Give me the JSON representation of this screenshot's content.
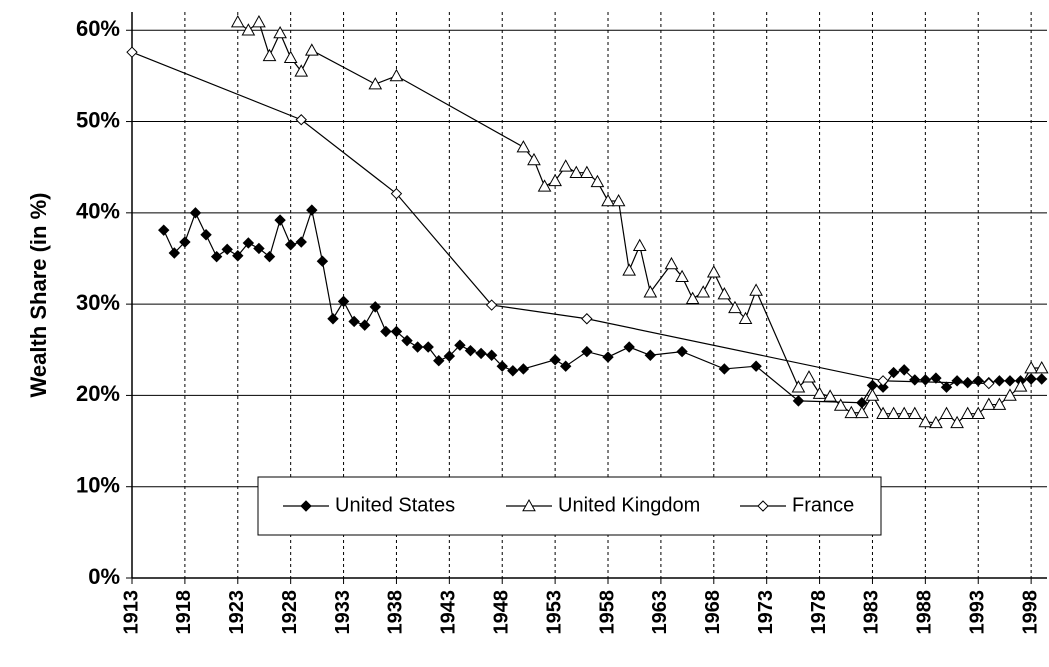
{
  "chart_data": {
    "type": "line",
    "ylabel": "Wealth Share (in %)",
    "xlim": [
      1913,
      1999.5
    ],
    "xticks": [
      1913,
      1918,
      1923,
      1928,
      1933,
      1938,
      1943,
      1948,
      1953,
      1958,
      1963,
      1968,
      1973,
      1978,
      1983,
      1988,
      1993,
      1998
    ],
    "ylim": [
      0,
      62
    ],
    "yticks": [
      {
        "value": 0,
        "label": "0%"
      },
      {
        "value": 10,
        "label": "10%"
      },
      {
        "value": 20,
        "label": "20%"
      },
      {
        "value": 30,
        "label": "30%"
      },
      {
        "value": 40,
        "label": "40%"
      },
      {
        "value": 50,
        "label": "50%"
      },
      {
        "value": 60,
        "label": "60%"
      }
    ],
    "grid": true,
    "legend": "lower center",
    "series": [
      {
        "name": "United States",
        "color": "#000000",
        "marker": "diamond-filled",
        "x": [
          1916,
          1917,
          1918,
          1919,
          1920,
          1921,
          1922,
          1923,
          1924,
          1925,
          1926,
          1927,
          1928,
          1929,
          1930,
          1931,
          1932,
          1933,
          1934,
          1935,
          1936,
          1937,
          1938,
          1939,
          1940,
          1941,
          1942,
          1943,
          1944,
          1945,
          1946,
          1947,
          1948,
          1949,
          1950,
          1953,
          1954,
          1956,
          1958,
          1960,
          1962,
          1965,
          1969,
          1972,
          1976,
          1982,
          1983,
          1984,
          1985,
          1986,
          1987,
          1988,
          1989,
          1990,
          1991,
          1992,
          1993,
          1994,
          1995,
          1996,
          1997,
          1998,
          1999
        ],
        "values": [
          38.1,
          35.6,
          36.8,
          40,
          37.6,
          35.2,
          36,
          35.3,
          36.7,
          36.1,
          35.2,
          39.2,
          36.5,
          36.8,
          40.3,
          34.7,
          28.4,
          30.3,
          28.1,
          27.7,
          29.7,
          27,
          27,
          26,
          25.3,
          25.3,
          23.8,
          24.3,
          25.5,
          24.9,
          24.6,
          24.4,
          23.2,
          22.7,
          22.9,
          23.9,
          23.2,
          24.8,
          24.2,
          25.3,
          24.4,
          24.8,
          22.9,
          23.2,
          19.4,
          19.2,
          21.1,
          20.9,
          22.5,
          22.8,
          21.7,
          21.7,
          21.9,
          20.9,
          21.6,
          21.4,
          21.6,
          21.4,
          21.6,
          21.6,
          21.6,
          21.8,
          21.8
        ]
      },
      {
        "name": "United Kingdom",
        "color": "#000000",
        "marker": "triangle-open",
        "x": [
          1923,
          1924,
          1925,
          1926,
          1927,
          1928,
          1929,
          1930,
          1936,
          1938,
          1950,
          1951,
          1952,
          1953,
          1954,
          1955,
          1956,
          1957,
          1958,
          1959,
          1960,
          1961,
          1962,
          1964,
          1965,
          1966,
          1967,
          1968,
          1969,
          1970,
          1971,
          1972,
          1976,
          1977,
          1978,
          1979,
          1980,
          1981,
          1982,
          1983,
          1984,
          1985,
          1986,
          1987,
          1988,
          1989,
          1990,
          1991,
          1992,
          1993,
          1994,
          1995,
          1996,
          1997,
          1998,
          1999
        ],
        "values": [
          60.9,
          60,
          60.9,
          57.2,
          59.7,
          57,
          55.5,
          57.8,
          54.1,
          55,
          47.2,
          45.8,
          42.9,
          43.5,
          45.1,
          44.4,
          44.4,
          43.4,
          41.3,
          41.3,
          33.7,
          36.4,
          31.3,
          34.4,
          33,
          30.6,
          31.3,
          33.5,
          31.1,
          29.6,
          28.4,
          31.5,
          20.9,
          22,
          20.2,
          19.9,
          18.9,
          18.1,
          18.1,
          20,
          18,
          18,
          18,
          18,
          17.1,
          17,
          18,
          17,
          18,
          18,
          19,
          19,
          20,
          21,
          23,
          23
        ]
      },
      {
        "name": "France",
        "color": "#000000",
        "marker": "diamond-open",
        "x": [
          1913,
          1929,
          1938,
          1947,
          1956,
          1984,
          1994
        ],
        "values": [
          57.6,
          50.2,
          42.1,
          29.9,
          28.4,
          21.6,
          21.3
        ]
      }
    ]
  }
}
